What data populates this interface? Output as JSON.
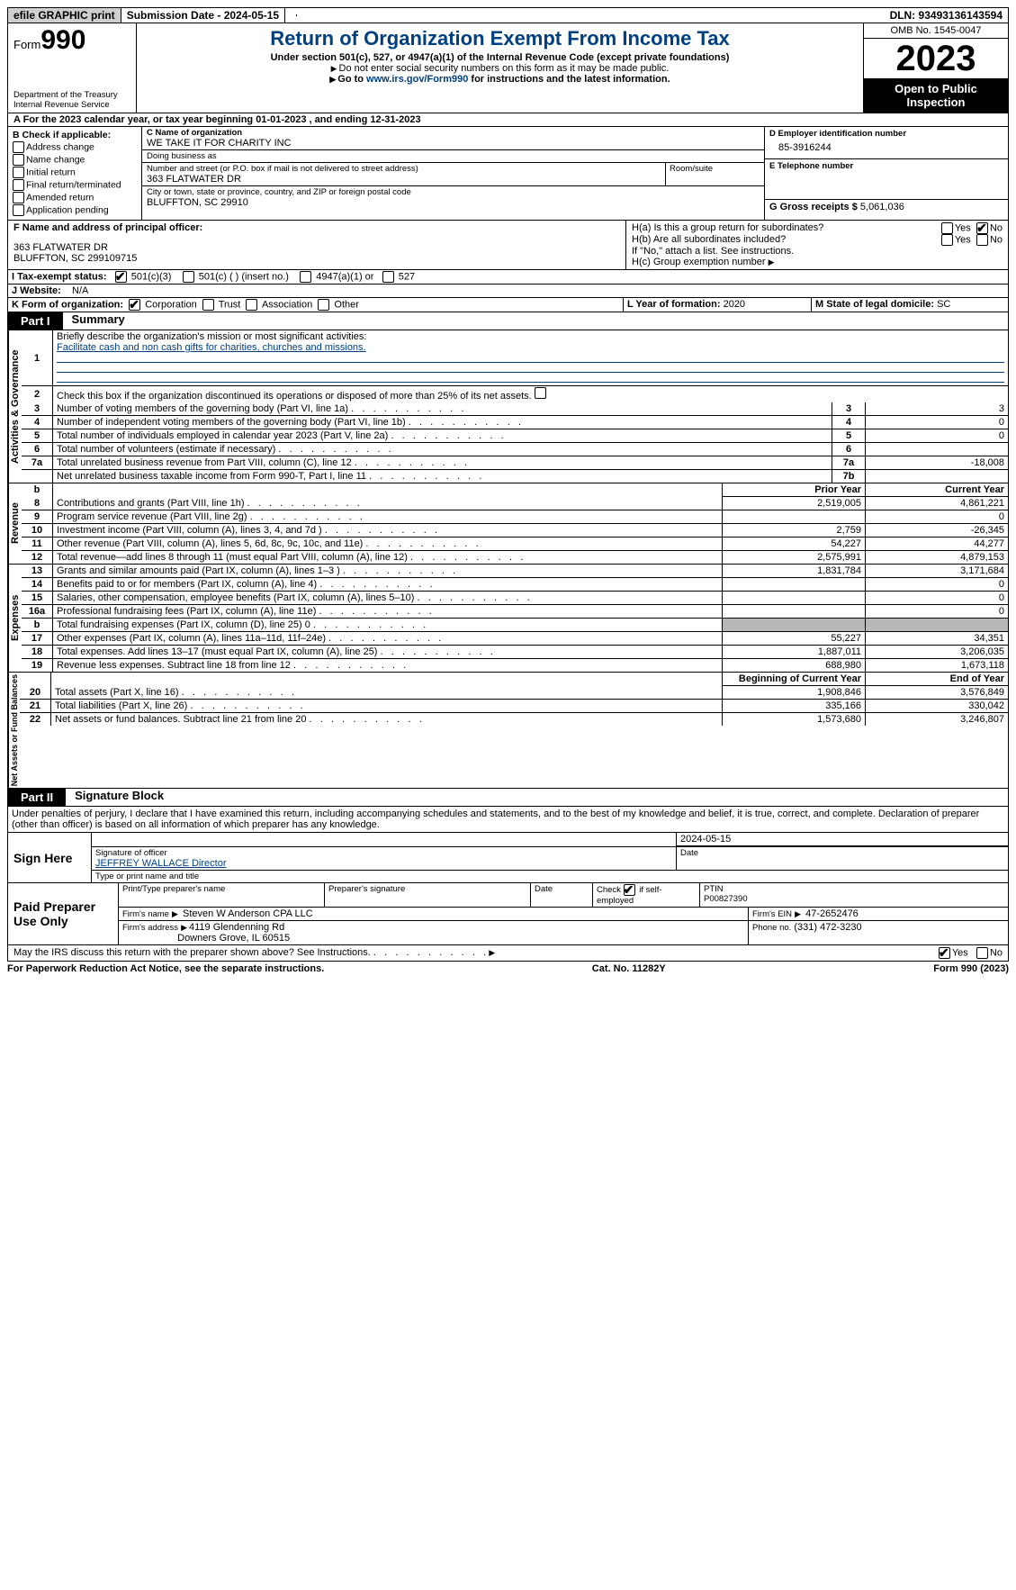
{
  "topbar": {
    "efile": "efile GRAPHIC print",
    "subdate_lbl": "Submission Date - 2024-05-15",
    "dln": "DLN: 93493136143594"
  },
  "header": {
    "form_prefix": "Form",
    "form_num": "990",
    "dept": "Department of the Treasury",
    "irs": "Internal Revenue Service",
    "title": "Return of Organization Exempt From Income Tax",
    "sub1": "Under section 501(c), 527, or 4947(a)(1) of the Internal Revenue Code (except private foundations)",
    "sub2": "Do not enter social security numbers on this form as it may be made public.",
    "sub3_pre": "Go to ",
    "sub3_link": "www.irs.gov/Form990",
    "sub3_post": " for instructions and the latest information.",
    "omb": "OMB No. 1545-0047",
    "year": "2023",
    "open": "Open to Public Inspection"
  },
  "sectionA": "A  For the 2023 calendar year, or tax year beginning 01-01-2023    , and ending 12-31-2023",
  "boxB": {
    "title": "B Check if applicable:",
    "opts": [
      "Address change",
      "Name change",
      "Initial return",
      "Final return/terminated",
      "Amended return",
      "Application pending"
    ]
  },
  "boxC": {
    "name_lbl": "C Name of organization",
    "name": "WE TAKE IT FOR CHARITY INC",
    "dba_lbl": "Doing business as",
    "dba": "",
    "street_lbl": "Number and street (or P.O. box if mail is not delivered to street address)",
    "street": "363 FLATWATER DR",
    "room_lbl": "Room/suite",
    "city_lbl": "City or town, state or province, country, and ZIP or foreign postal code",
    "city": "BLUFFTON, SC  29910"
  },
  "boxD": {
    "lbl": "D Employer identification number",
    "val": "85-3916244"
  },
  "boxE": {
    "lbl": "E Telephone number",
    "val": ""
  },
  "boxG": {
    "lbl": "G Gross receipts $",
    "val": "5,061,036"
  },
  "boxF": {
    "lbl": "F  Name and address of principal officer:",
    "line1": "363 FLATWATER DR",
    "line2": "BLUFFTON, SC  299109715"
  },
  "boxH": {
    "a": "H(a)  Is this a group return for subordinates?",
    "b": "H(b)  Are all subordinates included?",
    "bnote": "If \"No,\" attach a list. See instructions.",
    "c": "H(c)  Group exemption number",
    "yes": "Yes",
    "no": "No"
  },
  "boxI": {
    "lbl": "I    Tax-exempt status:",
    "o1": "501(c)(3)",
    "o2": "501(c) (  ) (insert no.)",
    "o3": "4947(a)(1) or",
    "o4": "527"
  },
  "boxJ": {
    "lbl": "J    Website:",
    "val": "N/A"
  },
  "boxK": {
    "lbl": "K Form of organization:",
    "o1": "Corporation",
    "o2": "Trust",
    "o3": "Association",
    "o4": "Other"
  },
  "boxL": {
    "lbl": "L Year of formation:",
    "val": "2020"
  },
  "boxM": {
    "lbl": "M State of legal domicile:",
    "val": "SC"
  },
  "part1": {
    "hdr": "Part I",
    "title": "Summary"
  },
  "summary1": {
    "q": "Briefly describe the organization's mission or most significant activities:",
    "a": "Facilitate cash and non cash gifts for charities, churches and missions."
  },
  "summary2": "Check this box      if the organization discontinued its operations or disposed of more than 25% of its net assets.",
  "gov_rows": [
    {
      "n": "3",
      "d": "Number of voting members of the governing body (Part VI, line 1a)",
      "k": "3",
      "v": "3"
    },
    {
      "n": "4",
      "d": "Number of independent voting members of the governing body (Part VI, line 1b)",
      "k": "4",
      "v": "0"
    },
    {
      "n": "5",
      "d": "Total number of individuals employed in calendar year 2023 (Part V, line 2a)",
      "k": "5",
      "v": "0"
    },
    {
      "n": "6",
      "d": "Total number of volunteers (estimate if necessary)",
      "k": "6",
      "v": ""
    },
    {
      "n": "7a",
      "d": "Total unrelated business revenue from Part VIII, column (C), line 12",
      "k": "7a",
      "v": "-18,008"
    },
    {
      "n": "",
      "d": "Net unrelated business taxable income from Form 990-T, Part I, line 11",
      "k": "7b",
      "v": ""
    }
  ],
  "rev_hdr": {
    "b": "b",
    "py": "Prior Year",
    "cy": "Current Year"
  },
  "rev_rows": [
    {
      "n": "8",
      "d": "Contributions and grants (Part VIII, line 1h)",
      "py": "2,519,005",
      "cy": "4,861,221"
    },
    {
      "n": "9",
      "d": "Program service revenue (Part VIII, line 2g)",
      "py": "",
      "cy": "0"
    },
    {
      "n": "10",
      "d": "Investment income (Part VIII, column (A), lines 3, 4, and 7d )",
      "py": "2,759",
      "cy": "-26,345"
    },
    {
      "n": "11",
      "d": "Other revenue (Part VIII, column (A), lines 5, 6d, 8c, 9c, 10c, and 11e)",
      "py": "54,227",
      "cy": "44,277"
    },
    {
      "n": "12",
      "d": "Total revenue—add lines 8 through 11 (must equal Part VIII, column (A), line 12)",
      "py": "2,575,991",
      "cy": "4,879,153"
    }
  ],
  "exp_rows": [
    {
      "n": "13",
      "d": "Grants and similar amounts paid (Part IX, column (A), lines 1–3 )",
      "py": "1,831,784",
      "cy": "3,171,684"
    },
    {
      "n": "14",
      "d": "Benefits paid to or for members (Part IX, column (A), line 4)",
      "py": "",
      "cy": "0"
    },
    {
      "n": "15",
      "d": "Salaries, other compensation, employee benefits (Part IX, column (A), lines 5–10)",
      "py": "",
      "cy": "0"
    },
    {
      "n": "16a",
      "d": "Professional fundraising fees (Part IX, column (A), line 11e)",
      "py": "",
      "cy": "0"
    },
    {
      "n": "b",
      "d": "Total fundraising expenses (Part IX, column (D), line 25) 0",
      "py": "GREY",
      "cy": "GREY"
    },
    {
      "n": "17",
      "d": "Other expenses (Part IX, column (A), lines 11a–11d, 11f–24e)",
      "py": "55,227",
      "cy": "34,351"
    },
    {
      "n": "18",
      "d": "Total expenses. Add lines 13–17 (must equal Part IX, column (A), line 25)",
      "py": "1,887,011",
      "cy": "3,206,035"
    },
    {
      "n": "19",
      "d": "Revenue less expenses. Subtract line 18 from line 12",
      "py": "688,980",
      "cy": "1,673,118"
    }
  ],
  "net_hdr": {
    "py": "Beginning of Current Year",
    "cy": "End of Year"
  },
  "net_rows": [
    {
      "n": "20",
      "d": "Total assets (Part X, line 16)",
      "py": "1,908,846",
      "cy": "3,576,849"
    },
    {
      "n": "21",
      "d": "Total liabilities (Part X, line 26)",
      "py": "335,166",
      "cy": "330,042"
    },
    {
      "n": "22",
      "d": "Net assets or fund balances. Subtract line 21 from line 20",
      "py": "1,573,680",
      "cy": "3,246,807"
    }
  ],
  "vlabels": {
    "gov": "Activities & Governance",
    "rev": "Revenue",
    "exp": "Expenses",
    "net": "Net Assets or Fund Balances"
  },
  "part2": {
    "hdr": "Part II",
    "title": "Signature Block"
  },
  "penalties": "Under penalties of perjury, I declare that I have examined this return, including accompanying schedules and statements, and to the best of my knowledge and belief, it is true, correct, and complete. Declaration of preparer (other than officer) is based on all information of which preparer has any knowledge.",
  "sign": {
    "here": "Sign Here",
    "sig_lbl": "Signature of officer",
    "officer": "JEFFREY WALLACE  Director",
    "type_lbl": "Type or print name and title",
    "date_lbl": "Date",
    "date": "2024-05-15"
  },
  "paid": {
    "lbl": "Paid Preparer Use Only",
    "c1": "Print/Type preparer's name",
    "c2": "Preparer's signature",
    "c3": "Date",
    "c4": "Check        if self-employed",
    "c5l": "PTIN",
    "c5v": "P00827390",
    "firm_lbl": "Firm's name",
    "firm": "Steven W Anderson CPA LLC",
    "ein_lbl": "Firm's EIN",
    "ein": "47-2652476",
    "addr_lbl": "Firm's address",
    "addr1": "4119 Glendenning Rd",
    "addr2": "Downers Grove, IL  60515",
    "phone_lbl": "Phone no.",
    "phone": "(331) 472-3230"
  },
  "may": {
    "q": "May the IRS discuss this return with the preparer shown above? See Instructions.",
    "yes": "Yes",
    "no": "No"
  },
  "footer": {
    "l": "For Paperwork Reduction Act Notice, see the separate instructions.",
    "m": "Cat. No. 11282Y",
    "r": "Form 990 (2023)"
  }
}
